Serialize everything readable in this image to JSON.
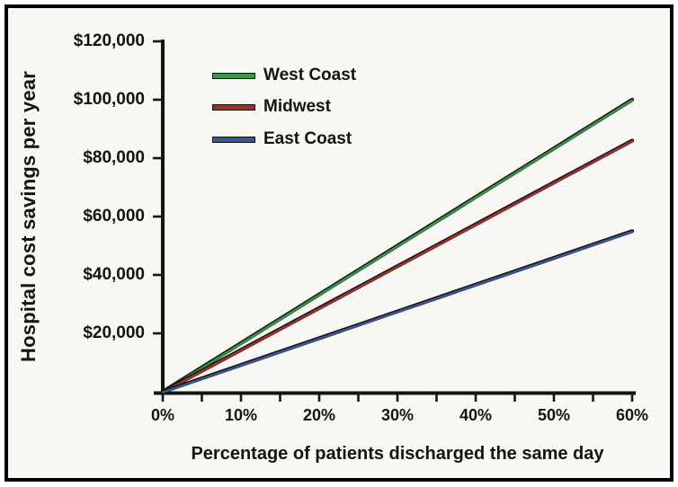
{
  "figure": {
    "background": "#f8f7f3",
    "frame_border_color": "#000000",
    "axis_color": "#141414",
    "text_color": "#131313"
  },
  "chart_data": {
    "type": "line",
    "title": "",
    "xlabel": "Percentage of patients discharged the same day",
    "ylabel": "Hospital cost savings per year",
    "x": [
      0,
      10,
      20,
      30,
      40,
      50,
      60
    ],
    "x_tick_labels": [
      "0%",
      "10%",
      "20%",
      "30%",
      "40%",
      "50%",
      "60%"
    ],
    "x_minor_tick_step": 5,
    "xlim": [
      0,
      60
    ],
    "y_ticks": [
      20000,
      40000,
      60000,
      80000,
      100000,
      120000
    ],
    "y_tick_labels": [
      "$20,000",
      "$40,000",
      "$60,000",
      "$80,000",
      "$100,000",
      "$120,000"
    ],
    "ylim": [
      0,
      120000
    ],
    "grid": false,
    "legend_position": "top-left-inside",
    "series": [
      {
        "name": "West Coast",
        "color": "#2f9a43",
        "values": [
          0,
          16667,
          33333,
          50000,
          66667,
          83333,
          100000
        ]
      },
      {
        "name": "Midwest",
        "color": "#a42e2c",
        "values": [
          0,
          14333,
          28667,
          43000,
          57333,
          71667,
          86000
        ]
      },
      {
        "name": "East Coast",
        "color": "#3a5795",
        "values": [
          0,
          9167,
          18333,
          27500,
          36667,
          45833,
          55000
        ]
      }
    ]
  }
}
